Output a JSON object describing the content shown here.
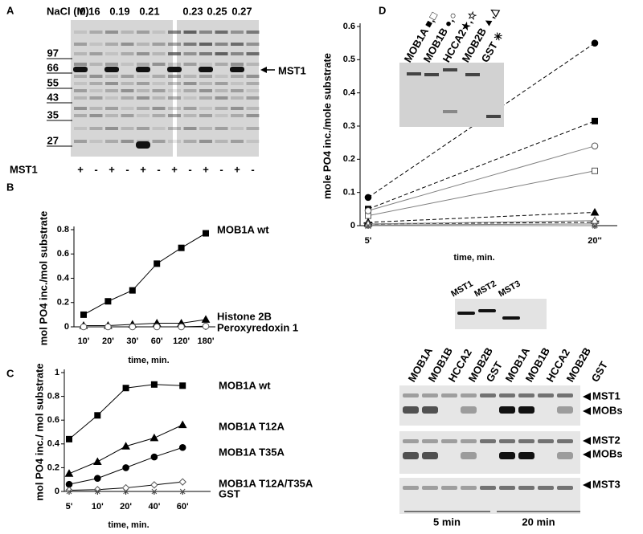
{
  "gel_a": {
    "panel_label": "A",
    "salt_label": "NaCl (M)",
    "salts": [
      0.16,
      0.19,
      0.21,
      0.23,
      0.25,
      0.27
    ],
    "markers": [
      97,
      66,
      55,
      43,
      35,
      27
    ],
    "lane_label": "MST1",
    "lanes": [
      "+",
      "-",
      "+",
      "-",
      "+",
      "-",
      "+",
      "-",
      "+",
      "-",
      "+",
      "-"
    ],
    "arrow_label": "MST1"
  },
  "chart_data": [
    {
      "type": "line",
      "panel_label": "B",
      "ylabel": "mol PO4 inc./mol substrate",
      "xlabel": "time, min.",
      "categories": [
        "10'",
        "20'",
        "30'",
        "60'",
        "120'",
        "180'"
      ],
      "ylim": [
        0,
        0.8
      ],
      "yticks": [
        0,
        0.2,
        0.4,
        0.6,
        0.8
      ],
      "series": [
        {
          "name": "MOB1A wt",
          "color": "#000000",
          "marker": "square",
          "values": [
            0.1,
            0.21,
            0.3,
            0.52,
            0.65,
            0.77
          ]
        },
        {
          "name": "Histone 2B",
          "color": "#000000",
          "marker": "triangle",
          "values": [
            0.01,
            0.01,
            0.02,
            0.03,
            0.03,
            0.06
          ]
        },
        {
          "name": "Peroxyredoxin 1",
          "color": "#000000",
          "marker": "open-circle",
          "values": [
            0,
            0,
            0,
            0,
            0,
            0.005
          ]
        }
      ]
    },
    {
      "type": "line",
      "panel_label": "C",
      "ylabel": "mol PO4 inc./ mol substrate",
      "xlabel": "time, min.",
      "categories": [
        "5'",
        "10'",
        "20'",
        "40'",
        "60'"
      ],
      "ylim": [
        0,
        1
      ],
      "yticks": [
        0,
        0.2,
        0.4,
        0.6,
        0.8,
        1
      ],
      "series": [
        {
          "name": "MOB1A wt",
          "color": "#000000",
          "marker": "square",
          "values": [
            0.44,
            0.64,
            0.87,
            0.9,
            0.89
          ]
        },
        {
          "name": "MOB1A T12A",
          "color": "#000000",
          "marker": "triangle",
          "values": [
            0.15,
            0.25,
            0.38,
            0.45,
            0.56
          ]
        },
        {
          "name": "MOB1A T35A",
          "color": "#000000",
          "marker": "circle",
          "values": [
            0.06,
            0.11,
            0.2,
            0.29,
            0.37
          ]
        },
        {
          "name": "MOB1A T12A/T35A",
          "color": "#000000",
          "marker": "open-diamond",
          "values": [
            0.01,
            0.015,
            0.03,
            0.055,
            0.08
          ]
        },
        {
          "name": "GST",
          "color": "#000000",
          "marker": "cross",
          "values": [
            0,
            0,
            0,
            0,
            0
          ]
        }
      ]
    },
    {
      "type": "line",
      "panel_label": "D",
      "ylabel": "mole PO4 inc./mole substrate",
      "xlabel": "time, min.",
      "categories": [
        "5'",
        "20''"
      ],
      "ylim": [
        0,
        0.6
      ],
      "yticks": [
        0,
        0.1,
        0.2,
        0.3,
        0.4,
        0.5,
        0.6
      ],
      "inset_labels": [
        "MOB1A ■,□",
        "MOB1B ●,○",
        "HCCA2★,☆",
        "MOB2B ▲,△",
        "GST ✳"
      ],
      "series": [
        {
          "color": "#000000",
          "marker": "square",
          "dash": true,
          "values": [
            0.05,
            0.315
          ]
        },
        {
          "color": "#808080",
          "marker": "open-square",
          "values": [
            0.03,
            0.165
          ]
        },
        {
          "color": "#000000",
          "marker": "circle",
          "dash": true,
          "values": [
            0.085,
            0.55
          ]
        },
        {
          "color": "#808080",
          "marker": "open-circle",
          "values": [
            0.045,
            0.24
          ]
        },
        {
          "color": "#000000",
          "marker": "star",
          "dash": true,
          "values": [
            0.005,
            0.01
          ]
        },
        {
          "color": "#808080",
          "marker": "open-star",
          "values": [
            0.002,
            0.005
          ]
        },
        {
          "color": "#000000",
          "marker": "triangle",
          "dash": true,
          "values": [
            0.01,
            0.04
          ]
        },
        {
          "color": "#808080",
          "marker": "open-triangle",
          "values": [
            0.005,
            0.015
          ]
        },
        {
          "color": "#808080",
          "marker": "asterisk",
          "values": [
            0,
            0
          ]
        }
      ]
    }
  ],
  "gel_d": {
    "kinases": [
      "MST1",
      "MST2",
      "MST3"
    ],
    "substrates": [
      "MOB1A",
      "MOB1B",
      "HCCA2",
      "MOB2B",
      "GST",
      "MOB1A",
      "MOB1B",
      "HCCA2",
      "MOB2B",
      "GST"
    ],
    "row_labels": [
      "MST1",
      "MOBs",
      "MST2",
      "MOBs",
      "MST3"
    ],
    "times": [
      "5 min",
      "20 min"
    ]
  }
}
